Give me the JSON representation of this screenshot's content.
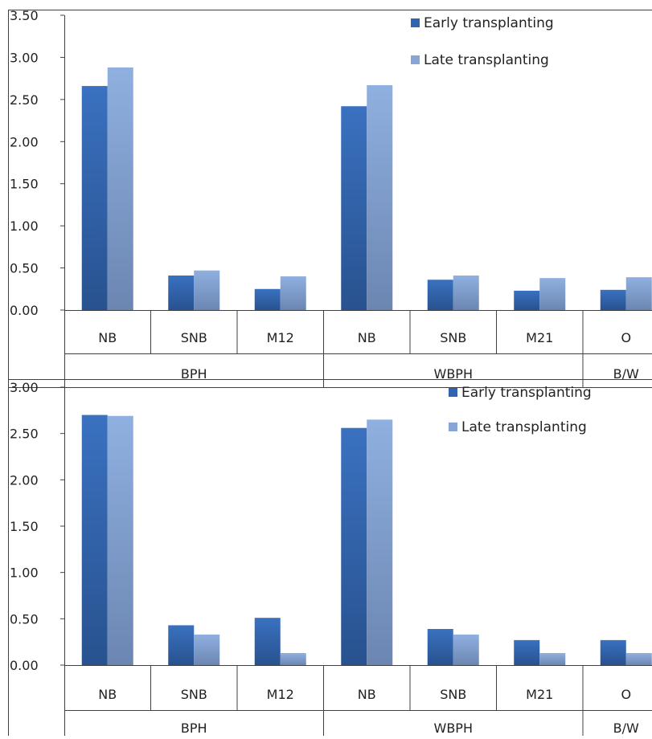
{
  "chart_data": [
    {
      "type": "bar",
      "groups": [
        {
          "label": "BPH",
          "categories": [
            "NB",
            "SNB",
            "M12"
          ]
        },
        {
          "label": "WBPH",
          "categories": [
            "NB",
            "SNB",
            "M21"
          ]
        },
        {
          "label": "B/W",
          "categories": [
            "O"
          ]
        }
      ],
      "categories": [
        "NB",
        "SNB",
        "M12",
        "NB",
        "SNB",
        "M21",
        "O"
      ],
      "series": [
        {
          "name": "Early transplanting",
          "values": [
            2.66,
            0.41,
            0.25,
            2.42,
            0.36,
            0.23,
            0.24
          ]
        },
        {
          "name": "Late transplanting",
          "values": [
            2.88,
            0.47,
            0.4,
            2.67,
            0.41,
            0.38,
            0.39
          ]
        }
      ],
      "yticks": [
        "0.00",
        "0.50",
        "1.00",
        "1.50",
        "2.00",
        "2.50",
        "3.00",
        "3.50"
      ],
      "ylim": [
        0,
        3.5
      ],
      "legend_position": "top-right",
      "grid": false
    },
    {
      "type": "bar",
      "groups": [
        {
          "label": "BPH",
          "categories": [
            "NB",
            "SNB",
            "M12"
          ]
        },
        {
          "label": "WBPH",
          "categories": [
            "NB",
            "SNB",
            "M21"
          ]
        },
        {
          "label": "B/W",
          "categories": [
            "O"
          ]
        }
      ],
      "categories": [
        "NB",
        "SNB",
        "M12",
        "NB",
        "SNB",
        "M21",
        "O"
      ],
      "series": [
        {
          "name": "Early transplanting",
          "values": [
            2.7,
            0.43,
            0.51,
            2.56,
            0.39,
            0.27,
            0.27
          ]
        },
        {
          "name": "Late transplanting",
          "values": [
            2.69,
            0.33,
            0.13,
            2.65,
            0.33,
            0.13,
            0.13
          ]
        }
      ],
      "yticks": [
        "0.00",
        "0.50",
        "1.00",
        "1.50",
        "2.00",
        "2.50",
        "3.00"
      ],
      "ylim": [
        0,
        3.0
      ],
      "legend_position": "top-right",
      "grid": false
    }
  ],
  "colors": {
    "early": "#2f64b0",
    "late": "#87a6d6",
    "axis": "#404040"
  }
}
